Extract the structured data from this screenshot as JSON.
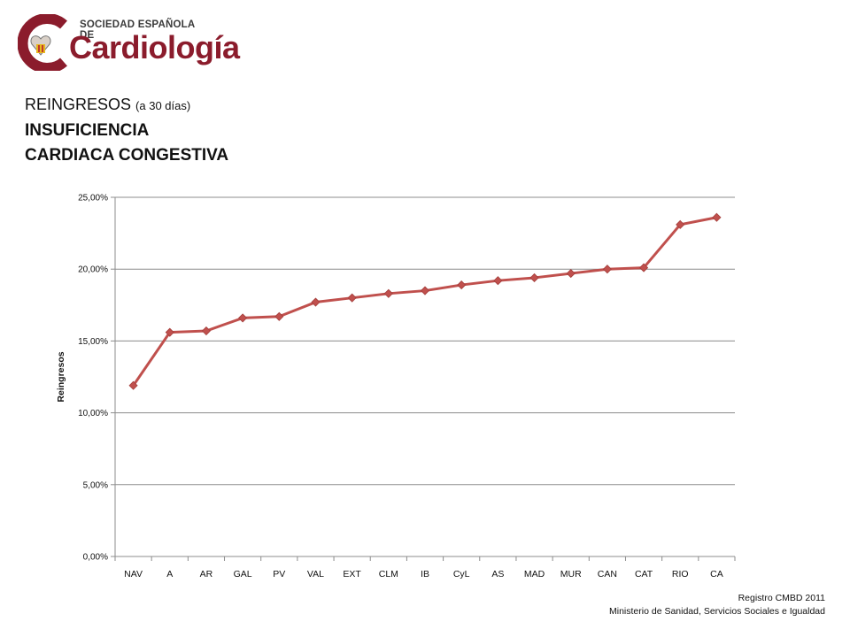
{
  "logo": {
    "superscript": "SOCIEDAD ESPAÑOLA DE",
    "wordmark": "Cardiología",
    "brand_color": "#8b1c2c"
  },
  "title": {
    "main": "REINGRESOS",
    "qualifier": "(a 30 días)",
    "line2": "INSUFICIENCIA",
    "line3": "CARDIACA CONGESTIVA"
  },
  "source": {
    "line1": "Registro CMBD 2011",
    "line2": "Ministerio de Sanidad, Servicios Sociales e Igualdad"
  },
  "chart_data": {
    "type": "line",
    "title": "",
    "xlabel": "",
    "ylabel": "Reingresos",
    "categories": [
      "NAV",
      "A",
      "AR",
      "GAL",
      "PV",
      "VAL",
      "EXT",
      "CLM",
      "IB",
      "CyL",
      "AS",
      "MAD",
      "MUR",
      "CAN",
      "CAT",
      "RIO",
      "CA"
    ],
    "series": [
      {
        "values": [
          11.9,
          15.6,
          15.7,
          16.6,
          16.7,
          17.7,
          18.0,
          18.3,
          18.5,
          18.9,
          19.2,
          19.4,
          19.7,
          20.0,
          20.1,
          23.1,
          23.6
        ],
        "color": "#c0504d"
      }
    ],
    "ylim": [
      0,
      25
    ],
    "yticks": [
      0,
      5,
      10,
      15,
      20,
      25
    ],
    "ytick_labels": [
      "0,00%",
      "5,00%",
      "10,00%",
      "15,00%",
      "20,00%",
      "25,00%"
    ],
    "grid": true,
    "legend": "none",
    "marker": "diamond"
  }
}
